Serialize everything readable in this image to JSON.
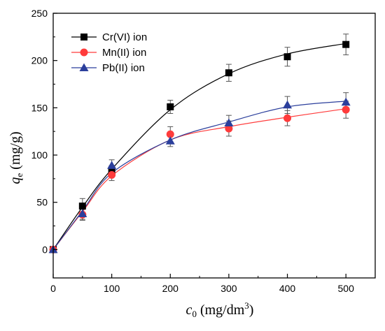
{
  "chart_data": {
    "type": "scatter",
    "x": [
      0,
      50,
      100,
      200,
      300,
      400,
      500
    ],
    "xlim": [
      0,
      550
    ],
    "ylim": [
      -30,
      250
    ],
    "xticks": [
      0,
      100,
      200,
      300,
      400,
      500
    ],
    "yticks": [
      0,
      50,
      100,
      150,
      200,
      250
    ],
    "xlabel_main": "c",
    "xlabel_sub": "0",
    "xlabel_units": " (mg/dm",
    "xlabel_sup": "3",
    "xlabel_close": ")",
    "ylabel_main": "q",
    "ylabel_sub": "e",
    "ylabel_units": " (mg/g)",
    "grid": false,
    "legend_position": "top-left",
    "series": [
      {
        "name": "Cr(VI) ion",
        "marker": "square",
        "color": "#000000",
        "line_color": "#000000",
        "values": [
          0,
          46,
          84,
          151,
          187,
          204,
          217
        ],
        "errors": [
          0,
          8,
          5,
          7,
          9,
          10,
          11
        ],
        "fit": [
          0,
          45,
          85,
          148,
          186,
          207,
          218
        ]
      },
      {
        "name": "Mn(II) ion",
        "marker": "circle",
        "color": "#ff3b3b",
        "line_color": "#ff3b3b",
        "values": [
          0,
          37,
          79,
          122,
          128,
          139,
          148
        ],
        "errors": [
          0,
          6,
          6,
          8,
          8,
          8,
          9
        ],
        "fit": [
          0,
          40,
          78,
          116,
          130,
          140,
          149
        ]
      },
      {
        "name": "Pb(II) ion",
        "marker": "triangle",
        "color": "#2b3f9c",
        "line_color": "#2b3f9c",
        "values": [
          0,
          38,
          89,
          115,
          134,
          153,
          156
        ],
        "errors": [
          0,
          6,
          6,
          6,
          8,
          9,
          10
        ],
        "fit": [
          0,
          41,
          81,
          116,
          135,
          151,
          157
        ]
      }
    ]
  }
}
